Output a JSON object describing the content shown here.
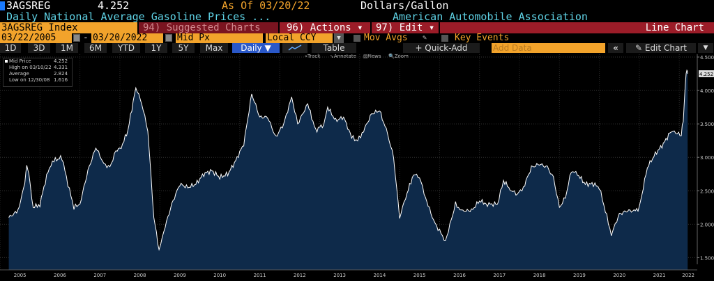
{
  "header": {
    "ticker": "3AGSREG",
    "last_value": "4.252",
    "as_of": "As Of 03/20/22",
    "units": "Dollars/Gallon",
    "description": "Daily National Average Gasoline Prices ...",
    "source": "American Automobile Association"
  },
  "command_bar": {
    "security": "3AGSREG Index",
    "suggested_charts": "94) Suggested Charts",
    "actions": "96) Actions ▾",
    "edit": "97) Edit ▾",
    "chart_type": "Line Chart"
  },
  "date_bar": {
    "start_date": "03/22/2005",
    "end_date": "03/20/2022",
    "field": "Mid Px",
    "currency": "Local CCY",
    "mov_avgs": "Mov Avgs",
    "key_events": "Key Events"
  },
  "toolbar": {
    "ranges": [
      "1D",
      "3D",
      "1M",
      "6M",
      "YTD",
      "1Y",
      "5Y",
      "Max"
    ],
    "frequency": "Daily",
    "table": "Table",
    "quick_add": "+ Quick-Add",
    "add_data_placeholder": "Add Data",
    "collapse": "«",
    "edit_chart": "Edit Chart"
  },
  "chart_tools": {
    "track": "Track",
    "annotate": "Annotate",
    "news": "News",
    "zoom": "Zoom"
  },
  "legend": {
    "title": "Mid Price",
    "title_value": "4.252",
    "high_label": "High on 03/10/22",
    "high_value": "4.331",
    "avg_label": "Average",
    "avg_value": "2.824",
    "low_label": "Low on 12/30/08",
    "low_value": "1.616"
  },
  "colors": {
    "line": "#ffffff",
    "area": "#0e2a4a",
    "accent_orange": "#f2a32b",
    "accent_red": "#9b1c28",
    "title_cyan": "#5fd3e6"
  },
  "chart_data": {
    "type": "area",
    "ylim": [
      1.4,
      4.5
    ],
    "y_ticks": [
      "4.500",
      "4.000",
      "3.500",
      "3.000",
      "2.500",
      "2.000",
      "1.500"
    ],
    "last_label": "4.252",
    "x_tick_labels": [
      "2005",
      "2006",
      "2007",
      "2008",
      "2009",
      "2010",
      "2011",
      "2012",
      "2013",
      "2014",
      "2015",
      "2016",
      "2017",
      "2018",
      "2019",
      "2020",
      "2021",
      "2022"
    ],
    "x": [
      2005.22,
      2005.45,
      2005.62,
      2005.67,
      2005.72,
      2005.83,
      2006.0,
      2006.2,
      2006.35,
      2006.55,
      2006.7,
      2006.85,
      2007.0,
      2007.2,
      2007.4,
      2007.6,
      2007.75,
      2007.9,
      2008.0,
      2008.2,
      2008.4,
      2008.55,
      2008.7,
      2008.85,
      2008.98,
      2009.1,
      2009.3,
      2009.5,
      2009.7,
      2009.9,
      2010.1,
      2010.3,
      2010.5,
      2010.7,
      2010.9,
      2011.1,
      2011.3,
      2011.5,
      2011.7,
      2011.9,
      2012.1,
      2012.3,
      2012.45,
      2012.7,
      2012.9,
      2013.1,
      2013.2,
      2013.4,
      2013.6,
      2013.8,
      2013.95,
      2014.1,
      2014.3,
      2014.5,
      2014.7,
      2014.85,
      2015.0,
      2015.15,
      2015.35,
      2015.5,
      2015.65,
      2015.85,
      2016.0,
      2016.15,
      2016.4,
      2016.55,
      2016.8,
      2017.0,
      2017.2,
      2017.45,
      2017.6,
      2017.8,
      2017.95,
      2018.1,
      2018.3,
      2018.5,
      2018.7,
      2018.85,
      2019.0,
      2019.15,
      2019.3,
      2019.45,
      2019.65,
      2019.85,
      2020.0,
      2020.15,
      2020.3,
      2020.5,
      2020.7,
      2020.9,
      2021.0,
      2021.2,
      2021.4,
      2021.6,
      2021.8,
      2021.95,
      2022.05,
      2022.1,
      2022.15,
      2022.19,
      2022.21
    ],
    "y": [
      2.1,
      2.2,
      2.6,
      2.9,
      2.75,
      2.25,
      2.3,
      2.8,
      2.95,
      3.0,
      2.6,
      2.25,
      2.3,
      2.8,
      3.15,
      2.9,
      2.85,
      3.1,
      3.1,
      3.4,
      4.05,
      3.8,
      3.4,
      2.1,
      1.62,
      1.9,
      2.3,
      2.6,
      2.55,
      2.6,
      2.75,
      2.8,
      2.7,
      2.75,
      2.95,
      3.2,
      3.95,
      3.6,
      3.6,
      3.3,
      3.5,
      3.9,
      3.5,
      3.8,
      3.4,
      3.5,
      3.75,
      3.55,
      3.6,
      3.3,
      3.25,
      3.4,
      3.65,
      3.7,
      3.35,
      3.0,
      2.1,
      2.4,
      2.75,
      2.7,
      2.4,
      2.05,
      1.9,
      1.75,
      2.3,
      2.2,
      2.2,
      2.35,
      2.3,
      2.3,
      2.65,
      2.5,
      2.45,
      2.55,
      2.85,
      2.9,
      2.85,
      2.7,
      2.25,
      2.4,
      2.8,
      2.75,
      2.6,
      2.6,
      2.55,
      2.2,
      1.85,
      2.15,
      2.2,
      2.2,
      2.25,
      2.85,
      3.05,
      3.2,
      3.4,
      3.35,
      3.35,
      3.55,
      4.1,
      4.33,
      4.25
    ]
  }
}
